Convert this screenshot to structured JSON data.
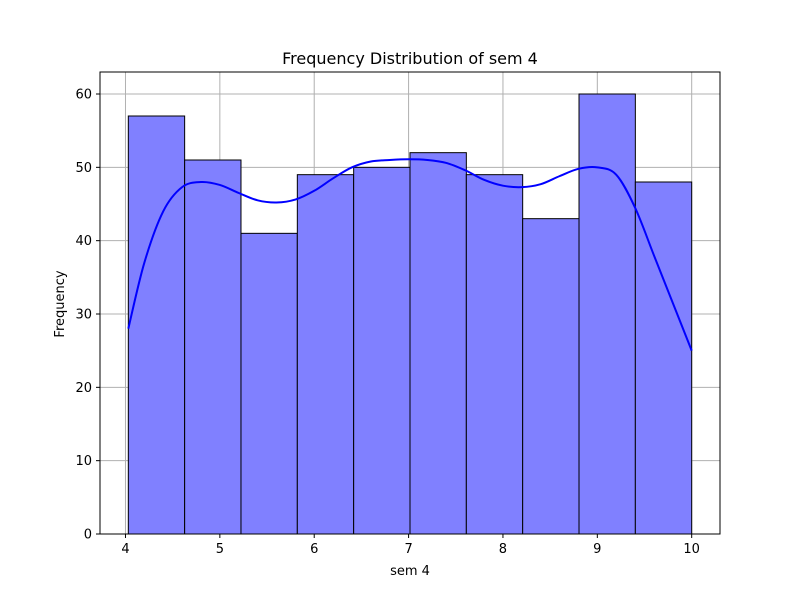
{
  "chart_data": {
    "type": "bar",
    "subtype": "histogram",
    "title": "Frequency Distribution of sem 4",
    "xlabel": "sem 4",
    "ylabel": "Frequency",
    "bins": [
      {
        "start": 4.03,
        "end": 4.627,
        "count": 57
      },
      {
        "start": 4.627,
        "end": 5.224,
        "count": 51
      },
      {
        "start": 5.224,
        "end": 5.821,
        "count": 41
      },
      {
        "start": 5.821,
        "end": 6.418,
        "count": 49
      },
      {
        "start": 6.418,
        "end": 7.015,
        "count": 50
      },
      {
        "start": 7.015,
        "end": 7.612,
        "count": 52
      },
      {
        "start": 7.612,
        "end": 8.209,
        "count": 49
      },
      {
        "start": 8.209,
        "end": 8.806,
        "count": 43
      },
      {
        "start": 8.806,
        "end": 9.403,
        "count": 60
      },
      {
        "start": 9.403,
        "end": 10.0,
        "count": 48
      }
    ],
    "kde": {
      "x": [
        4.03,
        4.2,
        4.4,
        4.6,
        4.8,
        5.0,
        5.2,
        5.4,
        5.6,
        5.8,
        6.0,
        6.2,
        6.4,
        6.6,
        6.8,
        7.0,
        7.2,
        7.4,
        7.6,
        7.8,
        8.0,
        8.2,
        8.4,
        8.6,
        8.8,
        9.0,
        9.2,
        9.4,
        9.6,
        9.8,
        10.0
      ],
      "y": [
        28,
        37,
        44,
        47.3,
        48,
        47.6,
        46.5,
        45.5,
        45.2,
        45.6,
        46.8,
        48.5,
        50,
        50.8,
        51,
        51.1,
        51,
        50.6,
        49.6,
        48.3,
        47.5,
        47.3,
        47.7,
        48.8,
        49.8,
        50,
        49,
        44.5,
        38,
        31.5,
        25
      ]
    },
    "x_ticks": [
      4,
      5,
      6,
      7,
      8,
      9,
      10
    ],
    "y_ticks": [
      0,
      10,
      20,
      30,
      40,
      50,
      60
    ],
    "xlim": [
      3.73,
      10.3
    ],
    "ylim": [
      0,
      63
    ],
    "grid": true,
    "bar_color": "#8080ff",
    "bar_edge_color": "#000000",
    "kde_color": "#0000ff"
  }
}
